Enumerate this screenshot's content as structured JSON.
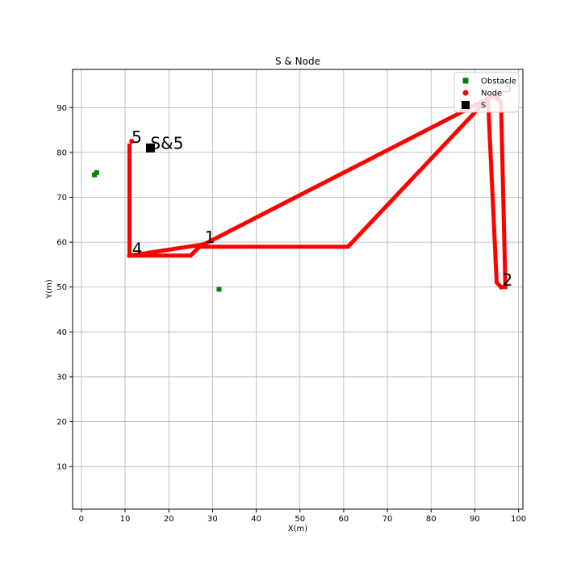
{
  "chart_data": {
    "type": "scatter",
    "title": "S & Node",
    "xlabel": "X(m)",
    "ylabel": "Y(m)",
    "xlim": [
      -2,
      101
    ],
    "ylim": [
      0.5,
      98.5
    ],
    "xticks": [
      0,
      10,
      20,
      30,
      40,
      50,
      60,
      70,
      80,
      90,
      100
    ],
    "yticks": [
      10,
      20,
      30,
      40,
      50,
      60,
      70,
      80,
      90
    ],
    "grid": true,
    "legend": {
      "position": "top-right",
      "entries": [
        {
          "label": "Obstacle",
          "marker": "square",
          "color": "#008000"
        },
        {
          "label": "Node",
          "marker": "circle",
          "color": "#ff0000"
        },
        {
          "label": "S",
          "marker": "square",
          "color": "#000000"
        }
      ]
    },
    "series": [
      {
        "name": "Obstacle",
        "color": "#008000",
        "marker": "square",
        "points": [
          [
            3,
            75
          ],
          [
            3.5,
            75.5
          ],
          [
            31.5,
            49.5
          ]
        ]
      },
      {
        "name": "Node",
        "color": "#ff0000",
        "marker": "circle",
        "points": [
          [
            28,
            59.5
          ],
          [
            96,
            50
          ],
          [
            95,
            92
          ],
          [
            11,
            57
          ],
          [
            11.5,
            82.5
          ]
        ]
      },
      {
        "name": "S",
        "color": "#000000",
        "marker": "square",
        "points": [
          [
            15.8,
            81
          ]
        ]
      }
    ],
    "paths": [
      {
        "color": "#ff0000",
        "points": [
          [
            11,
            82
          ],
          [
            11,
            57
          ],
          [
            25,
            57
          ],
          [
            27,
            59
          ],
          [
            61,
            59
          ],
          [
            93,
            92
          ],
          [
            95,
            51
          ],
          [
            96,
            50
          ],
          [
            97,
            50
          ],
          [
            96,
            91
          ],
          [
            95,
            93
          ],
          [
            28,
            59.5
          ],
          [
            11,
            57
          ]
        ]
      }
    ],
    "annotations": [
      {
        "text": "1",
        "x": 28.2,
        "y": 59.8
      },
      {
        "text": "2",
        "x": 96.3,
        "y": 50.3
      },
      {
        "text": "3",
        "x": 96.2,
        "y": 93.4
      },
      {
        "text": "4",
        "x": 11.6,
        "y": 57.2
      },
      {
        "text": "5",
        "x": 11.5,
        "y": 82.1
      },
      {
        "text": "S&5",
        "x": 15.8,
        "y": 80.8
      }
    ]
  }
}
